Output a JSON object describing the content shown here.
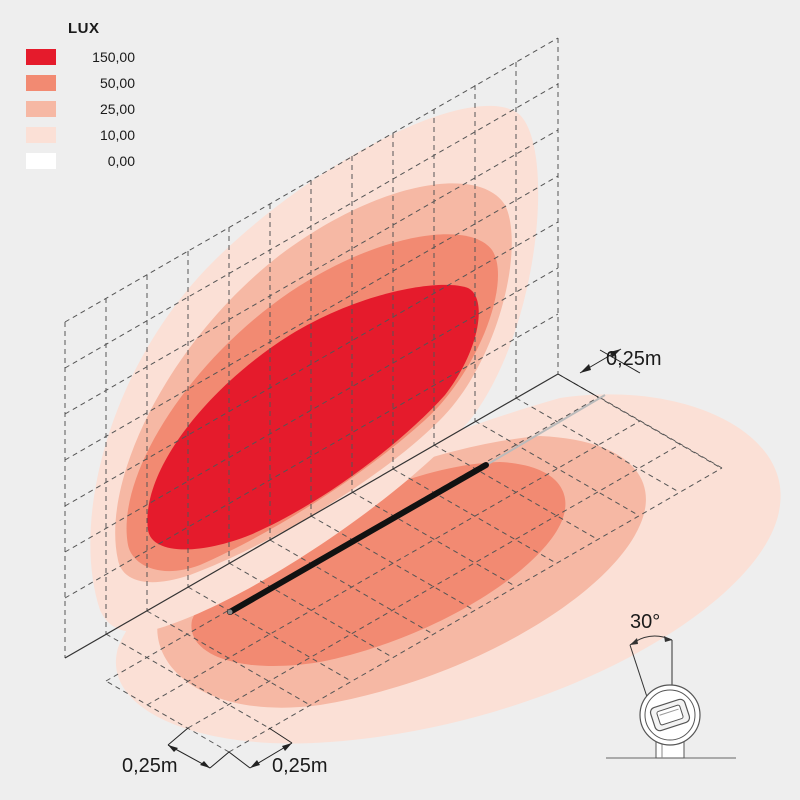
{
  "legend": {
    "title": "LUX",
    "items": [
      {
        "label": "150,00",
        "color": "#e51b2c"
      },
      {
        "label": "50,00",
        "color": "#f28a72"
      },
      {
        "label": "25,00",
        "color": "#f6b8a4"
      },
      {
        "label": "10,00",
        "color": "#fbe0d6"
      },
      {
        "label": "0,00",
        "color": "#ffffff"
      }
    ]
  },
  "dimensions": {
    "wall_grid_spacing": "0,25m",
    "floor_grid_spacing_a": "0,25m",
    "floor_grid_spacing_b": "0,25m",
    "tilt_angle": "30°"
  }
}
